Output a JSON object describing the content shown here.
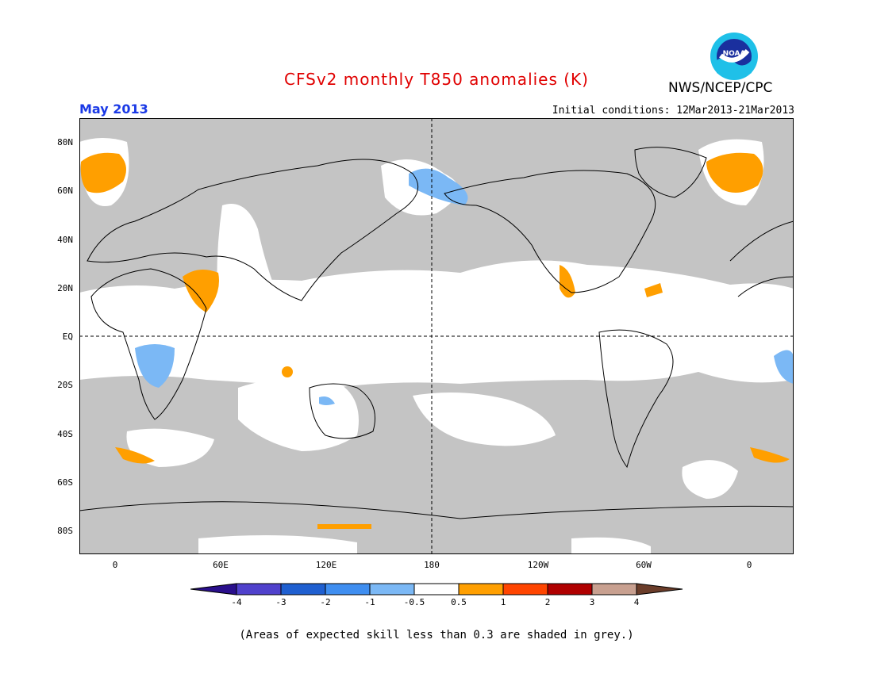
{
  "title": "CFSv2 monthly T850 anomalies (K)",
  "agency": "NWS/NCEP/CPC",
  "logo_text": "NOAA",
  "valid_month": "May 2013",
  "initial_conditions": "Initial conditions: 12Mar2013-21Mar2013",
  "lat_labels": [
    "80N",
    "60N",
    "40N",
    "20N",
    "EQ",
    "20S",
    "40S",
    "60S",
    "80S"
  ],
  "lon_labels": [
    "0",
    "60E",
    "120E",
    "180",
    "120W",
    "60W",
    "0"
  ],
  "colorbar": {
    "labels": [
      "-4",
      "-3",
      "-2",
      "-1",
      "-0.5",
      "0.5",
      "1",
      "2",
      "3",
      "4"
    ],
    "colors": [
      "#2a0f8c",
      "#5041cc",
      "#1f5fd0",
      "#3f8ef0",
      "#7bb8f5",
      "#ffffff",
      "#ff9f00",
      "#ff4500",
      "#b00000",
      "#c8a090",
      "#6b3d2a"
    ]
  },
  "note": "(Areas of expected skill less than 0.3 are shaded in grey.)",
  "colors": {
    "title": "#e00000",
    "month": "#1a39e6",
    "skill_grey": "#c4c4c4",
    "ocean_white": "#ffffff"
  }
}
